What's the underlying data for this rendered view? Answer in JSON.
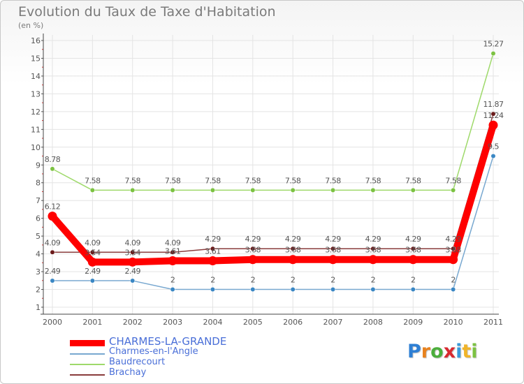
{
  "header": {
    "title": "Evolution du Taux de Taxe d'Habitation",
    "subtitle": "(en %)"
  },
  "logo": {
    "letters": [
      "P",
      "r",
      "o",
      "x",
      "i",
      "t",
      "i"
    ],
    "colors": [
      "#2e7fd4",
      "#e8821e",
      "#4cae3c",
      "#d8292f",
      "#3a9ad9",
      "#f0b429",
      "#7cc242"
    ]
  },
  "chart_data": {
    "type": "line",
    "title": "Evolution du Taux de Taxe d'Habitation",
    "ylabel": "(en %)",
    "xlabel": "",
    "categories": [
      "2000",
      "2001",
      "2002",
      "2003",
      "2004",
      "2005",
      "2006",
      "2007",
      "2008",
      "2009",
      "2010",
      "2011"
    ],
    "ylim": [
      1,
      16
    ],
    "yticks": [
      "1",
      "2",
      "3",
      "4",
      "5",
      "6",
      "7",
      "8",
      "9",
      "10",
      "11",
      "12",
      "13",
      "14",
      "15",
      "16"
    ],
    "grid": true,
    "legend_position": "bottom-left",
    "series": [
      {
        "name": "CHARMES-LA-GRANDE",
        "color": "#ff0000",
        "marker_color": "#ff0000",
        "emphasis": true,
        "values": [
          6.12,
          3.54,
          3.54,
          3.61,
          3.61,
          3.68,
          3.68,
          3.68,
          3.68,
          3.68,
          3.68,
          11.24
        ],
        "labels": [
          "6.12",
          "3.54",
          "3.54",
          "3.61",
          "3.61",
          "3.68",
          "3.68",
          "3.68",
          "3.68",
          "3.68",
          "3.68",
          "11.24"
        ]
      },
      {
        "name": "Charmes-en-l'Angle",
        "color": "#78a8d0",
        "marker_color": "#3a87c4",
        "values": [
          2.49,
          2.49,
          2.49,
          2,
          2,
          2,
          2,
          2,
          2,
          2,
          2,
          9.5
        ],
        "labels": [
          "2.49",
          "2.49",
          "2.49",
          "2",
          "2",
          "2",
          "2",
          "2",
          "2",
          "2",
          "2",
          "9.5"
        ]
      },
      {
        "name": "Baudrecourt",
        "color": "#9ed96a",
        "marker_color": "#7cc242",
        "values": [
          8.78,
          7.58,
          7.58,
          7.58,
          7.58,
          7.58,
          7.58,
          7.58,
          7.58,
          7.58,
          7.58,
          15.27
        ],
        "labels": [
          "8.78",
          "7.58",
          "7.58",
          "7.58",
          "7.58",
          "7.58",
          "7.58",
          "7.58",
          "7.58",
          "7.58",
          "7.58",
          "15.27"
        ]
      },
      {
        "name": "Brachay",
        "color": "#8a3c3c",
        "marker_color": "#6b1a1a",
        "values": [
          4.09,
          4.09,
          4.09,
          4.09,
          4.29,
          4.29,
          4.29,
          4.29,
          4.29,
          4.29,
          4.29,
          11.87
        ],
        "labels": [
          "4.09",
          "4.09",
          "4.09",
          "4.09",
          "4.29",
          "4.29",
          "4.29",
          "4.29",
          "4.29",
          "4.29",
          "4.29",
          "11.87"
        ]
      }
    ]
  }
}
